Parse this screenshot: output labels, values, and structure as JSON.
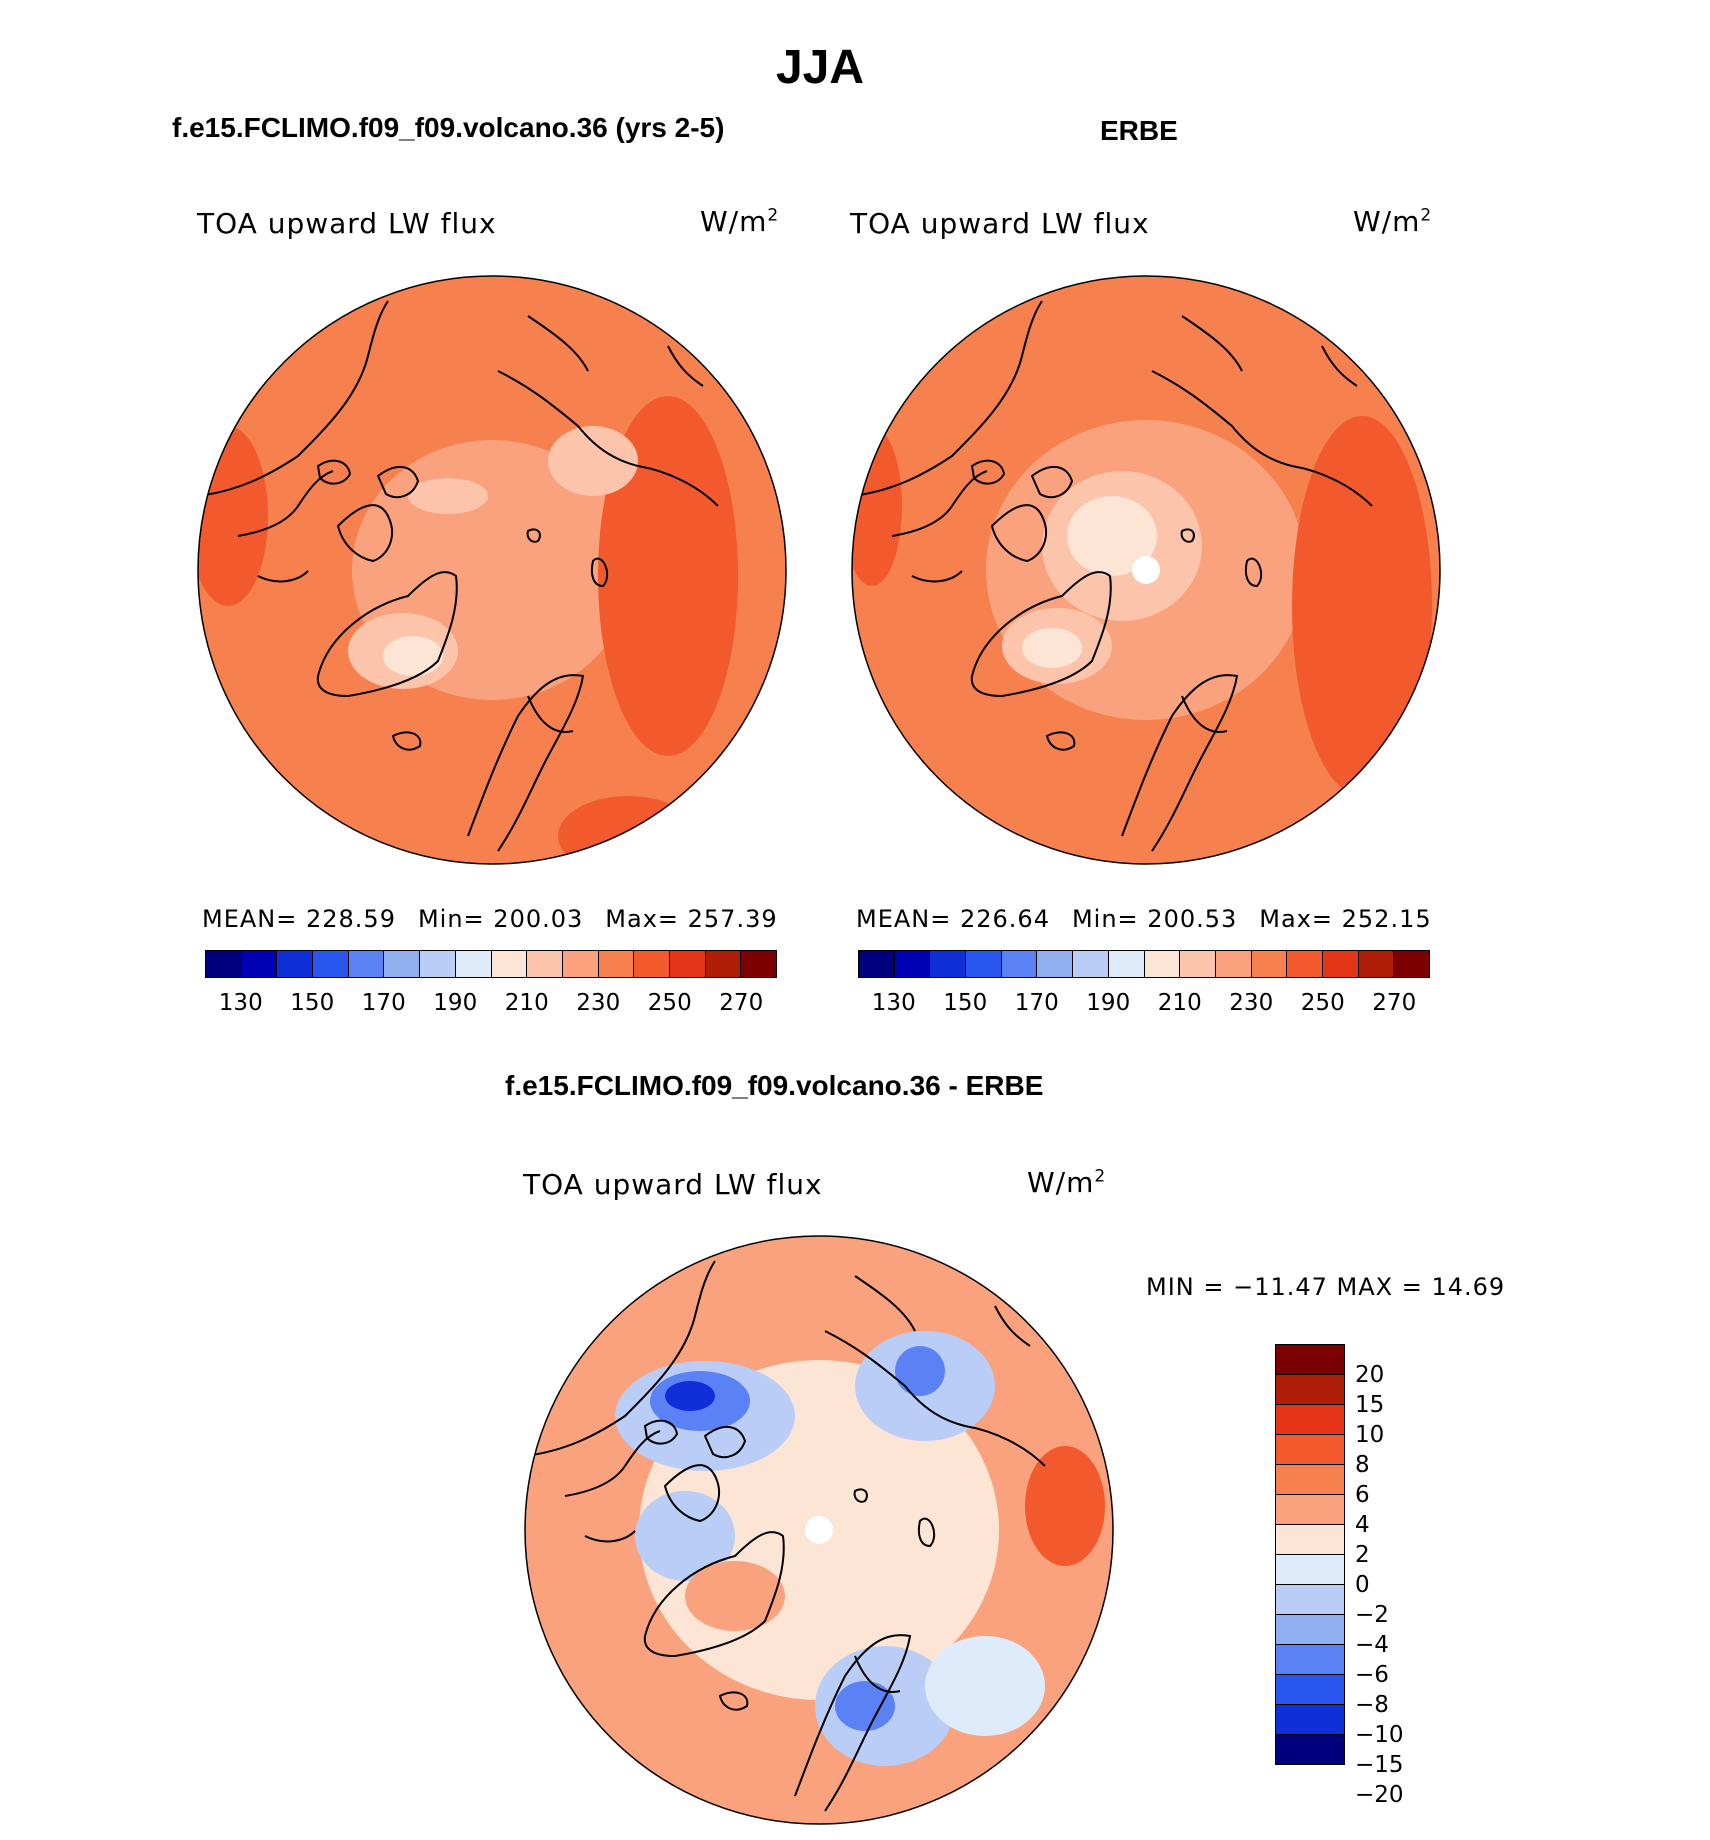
{
  "title": "JJA",
  "colors": {
    "abs_scale": [
      "#00007f",
      "#0000b4",
      "#0f2fd9",
      "#2856ee",
      "#5a82f5",
      "#8fafee",
      "#b9cdf7",
      "#deebfb",
      "#fde5d5",
      "#fbc4ab",
      "#f9a27d",
      "#f6804e",
      "#f25a2d",
      "#e43518",
      "#b01e0a",
      "#7c0000"
    ],
    "diff_scale": [
      "#7c0000",
      "#b01e0a",
      "#e43518",
      "#f25a2d",
      "#f6804e",
      "#f9a27d",
      "#fde5d5",
      "#deebfb",
      "#b9cdf7",
      "#8fafee",
      "#5a82f5",
      "#2856ee",
      "#0f2fd9",
      "#00007f"
    ],
    "coastline": "#000000"
  },
  "panels": {
    "model": {
      "title": "f.e15.FCLIMO.f09_f09.volcano.36 (yrs 2-5)",
      "variable": "TOA upward LW flux",
      "units": "W/m",
      "units_exp": "2",
      "mean_label": "MEAN= 228.59",
      "min_label": "Min= 200.03",
      "max_label": "Max= 257.39",
      "colorbar_ticks": [
        "130",
        "150",
        "170",
        "190",
        "210",
        "230",
        "250",
        "270"
      ]
    },
    "obs": {
      "title": "ERBE",
      "variable": "TOA upward LW flux",
      "units": "W/m",
      "units_exp": "2",
      "mean_label": "MEAN= 226.64",
      "min_label": "Min= 200.53",
      "max_label": "Max= 252.15",
      "colorbar_ticks": [
        "130",
        "150",
        "170",
        "190",
        "210",
        "230",
        "250",
        "270"
      ]
    },
    "diff": {
      "title": "f.e15.FCLIMO.f09_f09.volcano.36 - ERBE",
      "variable": "TOA upward LW flux",
      "units": "W/m",
      "units_exp": "2",
      "minmax_label": "MIN = −11.47 MAX =   14.69",
      "colorbar_ticks": [
        "20",
        "15",
        "10",
        "8",
        "6",
        "4",
        "2",
        "0",
        "−2",
        "−4",
        "−6",
        "−8",
        "−10",
        "−15",
        "−20"
      ]
    }
  }
}
